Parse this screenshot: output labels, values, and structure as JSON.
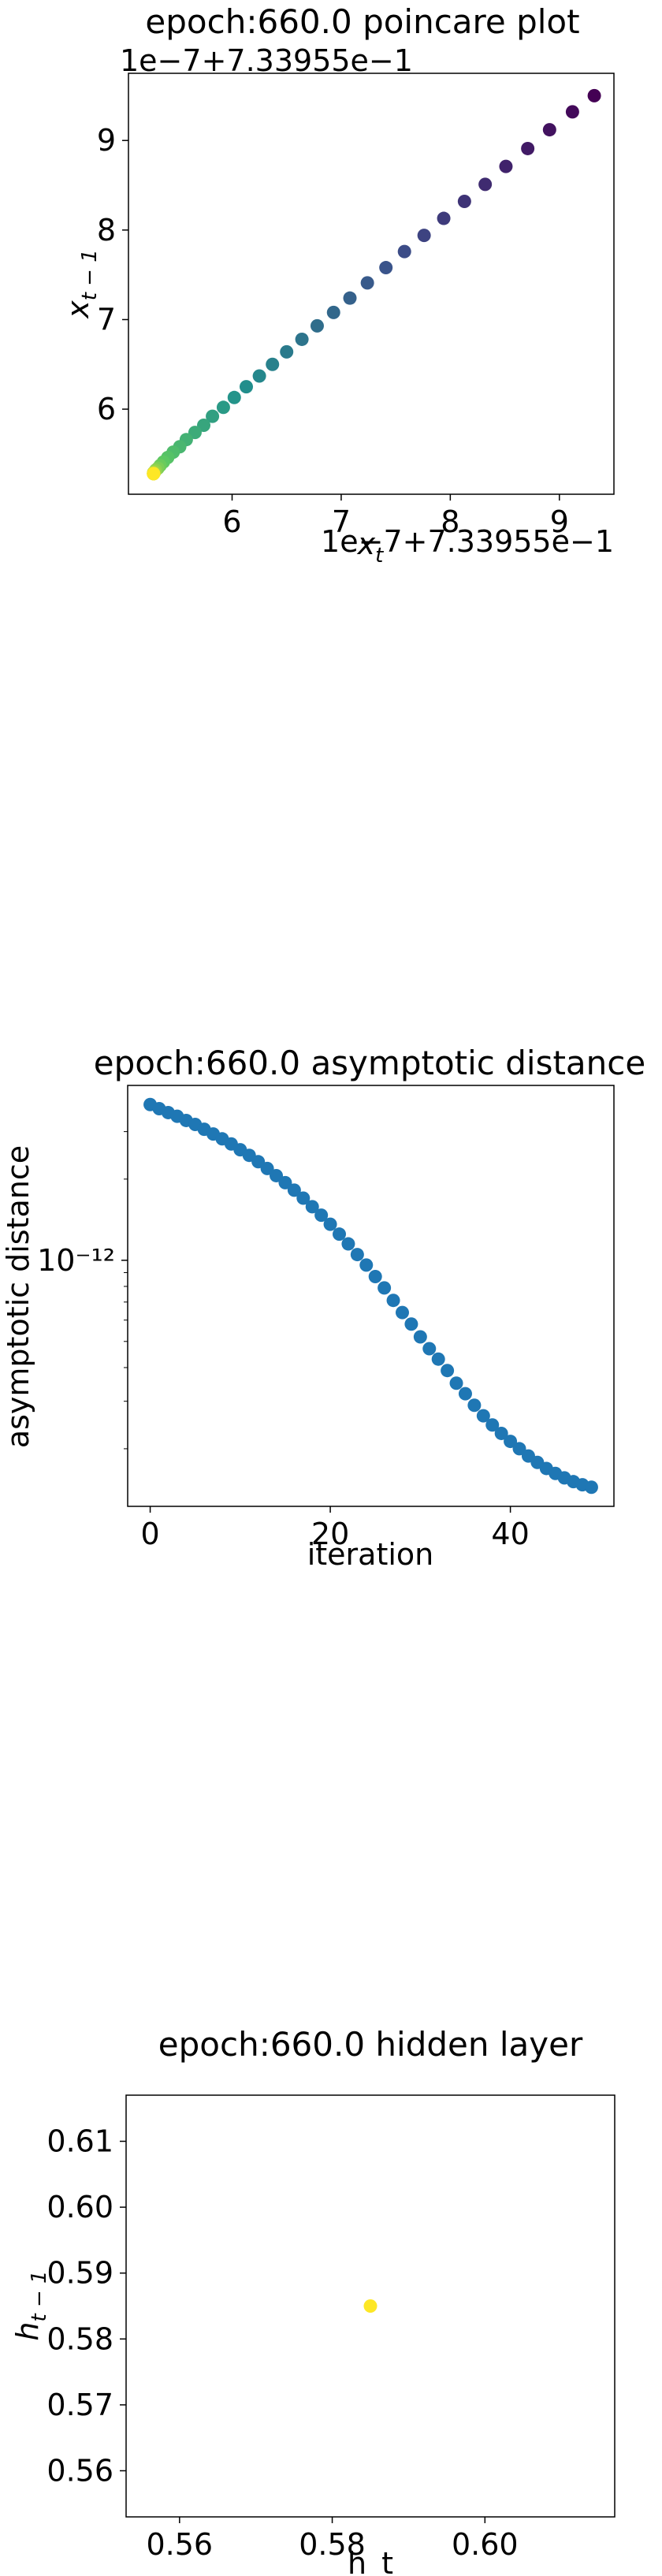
{
  "chart_data": [
    {
      "type": "scatter",
      "title": "epoch:660.0 poincare plot",
      "xlabel": "x_t",
      "ylabel": "x_{t-1}",
      "x_offset_label": "1e−7+7.33955e−1",
      "y_offset_label": "1e−7+7.33955e−1",
      "xlim": [
        5.05,
        9.5
      ],
      "ylim": [
        5.05,
        9.75
      ],
      "xticks": [
        6,
        7,
        8,
        9
      ],
      "yticks": [
        6,
        7,
        8,
        9
      ],
      "colormap": "viridis (dark purple = early iterations, yellow = late iterations)",
      "x": [
        9.32,
        9.12,
        8.91,
        8.71,
        8.51,
        8.32,
        8.13,
        7.94,
        7.76,
        7.58,
        7.41,
        7.24,
        7.08,
        6.93,
        6.78,
        6.64,
        6.5,
        6.37,
        6.25,
        6.13,
        6.02,
        5.92,
        5.82,
        5.74,
        5.66,
        5.58,
        5.52,
        5.46,
        5.41,
        5.37,
        5.34,
        5.32,
        5.3,
        5.29,
        5.28,
        5.28,
        5.28,
        5.28,
        5.28,
        5.28
      ],
      "y": [
        9.5,
        9.32,
        9.12,
        8.91,
        8.71,
        8.51,
        8.32,
        8.13,
        7.94,
        7.76,
        7.58,
        7.41,
        7.24,
        7.08,
        6.93,
        6.78,
        6.64,
        6.5,
        6.37,
        6.25,
        6.13,
        6.02,
        5.92,
        5.82,
        5.74,
        5.66,
        5.58,
        5.52,
        5.46,
        5.41,
        5.37,
        5.34,
        5.32,
        5.3,
        5.29,
        5.28,
        5.28,
        5.28,
        5.28,
        5.28
      ]
    },
    {
      "type": "scatter",
      "title": "epoch:660.0 asymptotic distance",
      "xlabel": "iteration",
      "ylabel": "asymptotic distance",
      "yscale": "log",
      "xlim": [
        -2.5,
        51.5
      ],
      "xticks": [
        0,
        20,
        40
      ],
      "ytick_label": "10⁻¹²",
      "ytick_value": 1e-12,
      "color": "#1f77b4",
      "x": [
        0,
        1,
        2,
        3,
        4,
        5,
        6,
        7,
        8,
        9,
        10,
        11,
        12,
        13,
        14,
        15,
        16,
        17,
        18,
        19,
        20,
        21,
        22,
        23,
        24,
        25,
        26,
        27,
        28,
        29,
        30,
        31,
        32,
        33,
        34,
        35,
        36,
        37,
        38,
        39,
        40,
        41,
        42,
        43,
        44,
        45,
        46,
        47,
        48,
        49
      ],
      "y": [
        3.78e-12,
        3.65e-12,
        3.53e-12,
        3.42e-12,
        3.3e-12,
        3.19e-12,
        3.06e-12,
        2.94e-12,
        2.82e-12,
        2.7e-12,
        2.57e-12,
        2.45e-12,
        2.32e-12,
        2.19e-12,
        2.06e-12,
        1.94e-12,
        1.82e-12,
        1.7e-12,
        1.58e-12,
        1.47e-12,
        1.36e-12,
        1.25e-12,
        1.15e-12,
        1.05e-12,
        9.6e-13,
        8.7e-13,
        7.9e-13,
        7.1e-13,
        6.4e-13,
        5.8e-13,
        5.2e-13,
        4.7e-13,
        4.3e-13,
        3.9e-13,
        3.5e-13,
        3.2e-13,
        2.9e-13,
        2.65e-13,
        2.45e-13,
        2.28e-13,
        2.13e-13,
        2e-13,
        1.88e-13,
        1.78e-13,
        1.69e-13,
        1.62e-13,
        1.56e-13,
        1.51e-13,
        1.47e-13,
        1.44e-13
      ]
    },
    {
      "type": "scatter",
      "title": "epoch:660.0 hidden layer",
      "xlabel": "h_t",
      "ylabel": "h_{t-1}",
      "xlim": [
        0.553,
        0.617
      ],
      "ylim": [
        0.553,
        0.617
      ],
      "xticks": [
        0.56,
        0.58,
        0.6
      ],
      "xtick_labels": [
        "0.56",
        "0.58",
        "0.60"
      ],
      "yticks": [
        0.56,
        0.57,
        0.58,
        0.59,
        0.6,
        0.61
      ],
      "ytick_labels": [
        "0.56",
        "0.57",
        "0.58",
        "0.59",
        "0.60",
        "0.61"
      ],
      "color": "#fde725",
      "x": [
        0.585
      ],
      "y": [
        0.585
      ]
    }
  ]
}
